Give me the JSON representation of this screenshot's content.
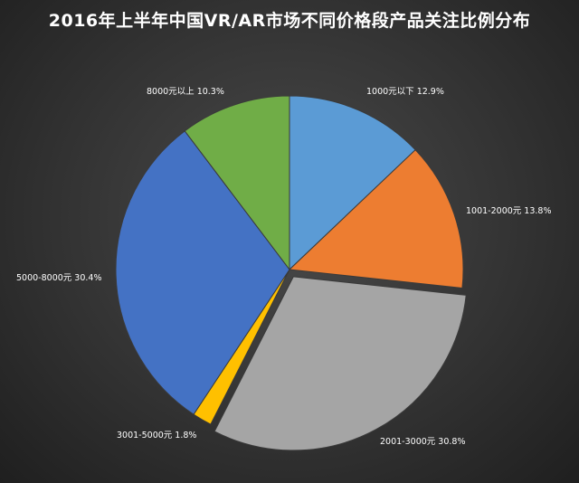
{
  "chart_data": {
    "type": "pie",
    "title": "2016年上半年中国VR/AR市场不同价格段产品关注比例分布",
    "slices": [
      {
        "label": "1000元以下",
        "value": 12.9,
        "value_text": "12.9%",
        "color": "#5b9bd5"
      },
      {
        "label": "1001-2000元",
        "value": 13.8,
        "value_text": "13.8%",
        "color": "#ed7d31"
      },
      {
        "label": "2001-3000元",
        "value": 30.8,
        "value_text": "30.8%",
        "color": "#a5a5a5"
      },
      {
        "label": "3001-5000元",
        "value": 1.8,
        "value_text": "1.8%",
        "color": "#ffc000"
      },
      {
        "label": "5000-8000元",
        "value": 30.4,
        "value_text": "30.4%",
        "color": "#4472c4"
      },
      {
        "label": "8000元以上",
        "value": 10.3,
        "value_text": "10.3%",
        "color": "#70ad47"
      }
    ],
    "start_angle": "12 o'clock",
    "direction": "clockwise",
    "legend": "none"
  }
}
